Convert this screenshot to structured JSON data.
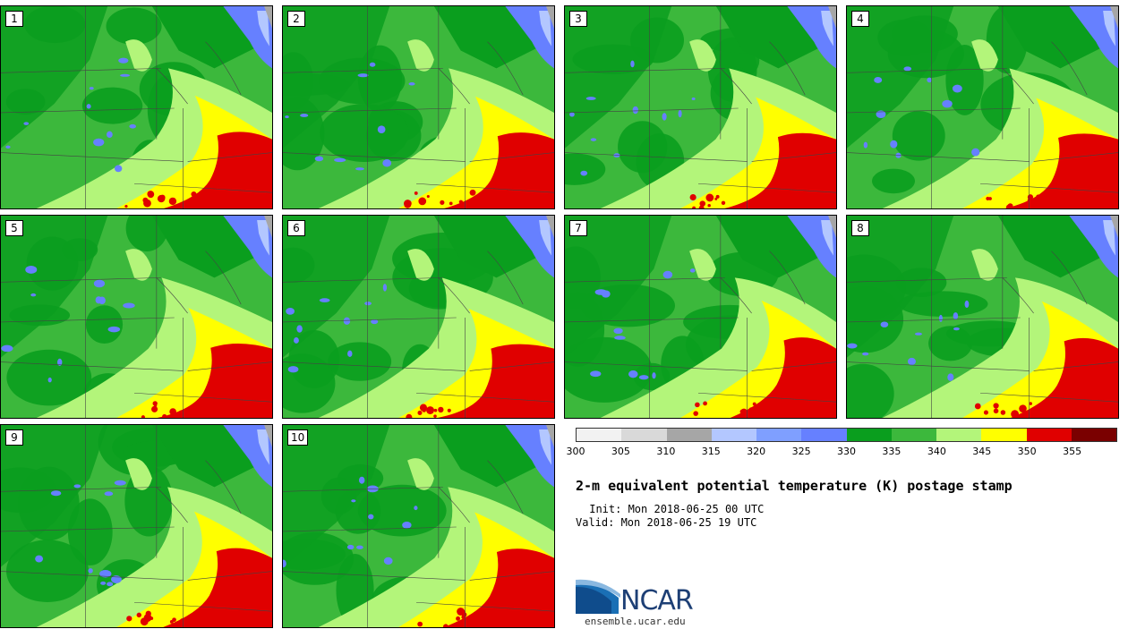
{
  "title": "2-m equivalent potential temperature (K) postage stamp",
  "init_text": " Init: Mon 2018-06-25 00 UTC",
  "valid_text": "Valid: Mon 2018-06-25 19 UTC",
  "logo": {
    "word": "NCAR",
    "url": "ensemble.ucar.edu"
  },
  "panels": [
    {
      "label": "1"
    },
    {
      "label": "2"
    },
    {
      "label": "3"
    },
    {
      "label": "4"
    },
    {
      "label": "5"
    },
    {
      "label": "6"
    },
    {
      "label": "7"
    },
    {
      "label": "8"
    },
    {
      "label": "9"
    },
    {
      "label": "10"
    }
  ],
  "colorbar": {
    "ticks": [
      "300",
      "305",
      "310",
      "315",
      "320",
      "325",
      "330",
      "335",
      "340",
      "345",
      "350",
      "355"
    ],
    "colors": [
      "#f2f2f2",
      "#d9d9d9",
      "#a6a6a6",
      "#b3c7ff",
      "#7f9fff",
      "#6680ff",
      "#0a9e1e",
      "#3cb83c",
      "#b3f57a",
      "#ffff00",
      "#e00000",
      "#7a0000"
    ]
  },
  "map_colors": {
    "dark_green": "#0a9e1e",
    "mid_green": "#3cb83c",
    "light_green": "#b3f57a",
    "yellow": "#ffff00",
    "red": "#e00000",
    "blue": "#6680ff",
    "light_blue": "#b3c7ff",
    "gray": "#a6a6a6"
  }
}
